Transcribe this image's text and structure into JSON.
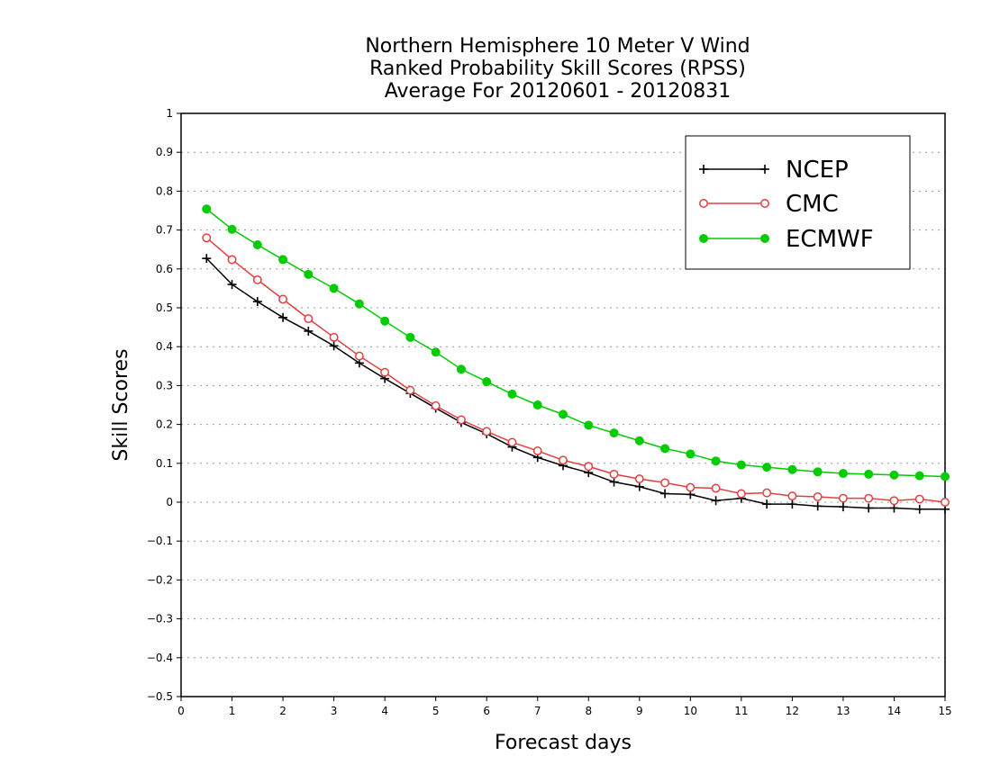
{
  "chart_data": {
    "type": "line",
    "title": [
      "Northern Hemisphere 10 Meter V Wind",
      "Ranked Probability Skill Scores (RPSS)",
      "Average For 20120601 - 20120831"
    ],
    "xlabel": "Forecast days",
    "ylabel": "Skill Scores",
    "xlim": [
      0,
      15
    ],
    "ylim": [
      -0.5,
      1
    ],
    "xticks": [
      "0",
      "1",
      "2",
      "3",
      "4",
      "5",
      "6",
      "7",
      "8",
      "9",
      "10",
      "11",
      "12",
      "13",
      "14",
      "15"
    ],
    "yticks": [
      "1",
      "0.9",
      "0.8",
      "0.7",
      "0.6",
      "0.5",
      "0.4",
      "0.3",
      "0.2",
      "0.1",
      "0",
      "−0.1",
      "−0.2",
      "−0.3",
      "−0.4",
      "−0.5"
    ],
    "grid": "horizontal-dotted",
    "legend_position": "top-right",
    "x": [
      0.5,
      1,
      1.5,
      2,
      2.5,
      3,
      3.5,
      4,
      4.5,
      5,
      5.5,
      6,
      6.5,
      7,
      7.5,
      8,
      8.5,
      9,
      9.5,
      10,
      10.5,
      11,
      11.5,
      12,
      12.5,
      13,
      13.5,
      14,
      14.5,
      15
    ],
    "series": [
      {
        "name": "NCEP",
        "color": "#000000",
        "marker": "plus",
        "values": [
          0.627,
          0.56,
          0.516,
          0.475,
          0.44,
          0.402,
          0.358,
          0.318,
          0.28,
          0.242,
          0.205,
          0.176,
          0.142,
          0.115,
          0.094,
          0.076,
          0.052,
          0.04,
          0.022,
          0.02,
          0.004,
          0.01,
          -0.005,
          -0.005,
          -0.01,
          -0.012,
          -0.015,
          -0.015,
          -0.018,
          -0.018
        ]
      },
      {
        "name": "CMC",
        "color": "#e04040",
        "marker": "open-circle",
        "values": [
          0.68,
          0.624,
          0.572,
          0.522,
          0.472,
          0.424,
          0.376,
          0.334,
          0.288,
          0.248,
          0.212,
          0.182,
          0.154,
          0.132,
          0.108,
          0.092,
          0.072,
          0.06,
          0.05,
          0.038,
          0.036,
          0.022,
          0.024,
          0.016,
          0.014,
          0.01,
          0.01,
          0.004,
          0.008,
          0
        ]
      },
      {
        "name": "ECMWF",
        "color": "#00cc00",
        "marker": "filled-circle",
        "values": [
          0.754,
          0.702,
          0.662,
          0.624,
          0.586,
          0.55,
          0.51,
          0.466,
          0.424,
          0.386,
          0.342,
          0.31,
          0.278,
          0.25,
          0.226,
          0.198,
          0.178,
          0.158,
          0.138,
          0.124,
          0.106,
          0.096,
          0.09,
          0.084,
          0.078,
          0.074,
          0.072,
          0.07,
          0.068,
          0.066
        ]
      }
    ]
  }
}
